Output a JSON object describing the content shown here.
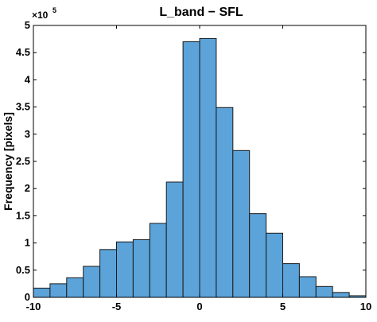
{
  "chart_data": {
    "type": "bar",
    "title": "L_band − SFL",
    "ylabel": "Frequency [pixels]",
    "xlabel": "",
    "y_multiplier_base": "×10",
    "y_multiplier_exponent": "5",
    "bar_color": "#5ba3d9",
    "bar_edge_color": "#1a1a1a",
    "xlim": [
      -10,
      10
    ],
    "ylim": [
      0,
      5
    ],
    "xticks": [
      -10,
      -5,
      0,
      5,
      10
    ],
    "xtick_labels": [
      "-10",
      "-5",
      "0",
      "5",
      "10"
    ],
    "yticks": [
      0,
      0.5,
      1,
      1.5,
      2,
      2.5,
      3,
      3.5,
      4,
      4.5,
      5
    ],
    "ytick_labels": [
      "0",
      "0.5",
      "1",
      "1.5",
      "2",
      "2.5",
      "3",
      "3.5",
      "4",
      "4.5",
      "5"
    ],
    "bin_edges": [
      -10,
      -9,
      -8,
      -7,
      -6,
      -5,
      -4,
      -3,
      -2,
      -1,
      0,
      1,
      2,
      3,
      4,
      5,
      6,
      7,
      8,
      9,
      10
    ],
    "values_x1e5": [
      0.17,
      0.25,
      0.36,
      0.57,
      0.88,
      1.02,
      1.06,
      1.36,
      2.12,
      4.7,
      4.76,
      3.49,
      2.7,
      1.54,
      1.18,
      0.62,
      0.38,
      0.2,
      0.09,
      0.03
    ]
  }
}
